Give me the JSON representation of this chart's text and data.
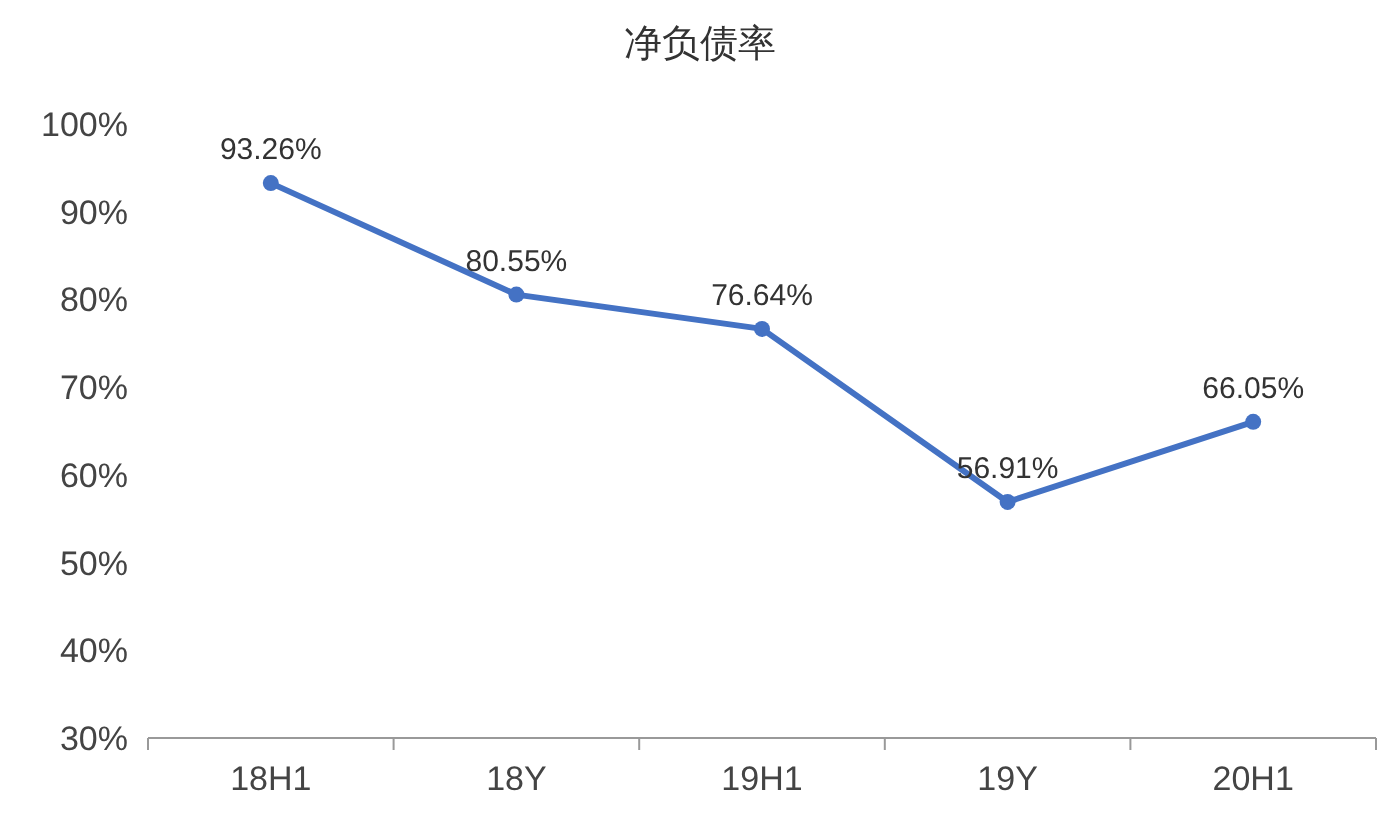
{
  "chart_data": {
    "type": "line",
    "title": "净负债率",
    "categories": [
      "18H1",
      "18Y",
      "19H1",
      "19Y",
      "20H1"
    ],
    "series": [
      {
        "color": "#4472c4",
        "values": [
          93.26,
          80.55,
          76.64,
          56.91,
          66.05
        ],
        "value_labels": [
          "93.26%",
          "80.55%",
          "76.64%",
          "56.91%",
          "66.05%"
        ]
      }
    ],
    "ylim": [
      30,
      100
    ],
    "yticks": [
      {
        "value": 30,
        "label": "30%"
      },
      {
        "value": 40,
        "label": "40%"
      },
      {
        "value": 50,
        "label": "50%"
      },
      {
        "value": 60,
        "label": "60%"
      },
      {
        "value": 70,
        "label": "70%"
      },
      {
        "value": 80,
        "label": "80%"
      },
      {
        "value": 90,
        "label": "90%"
      },
      {
        "value": 100,
        "label": "100%"
      }
    ],
    "marker": "circle"
  }
}
